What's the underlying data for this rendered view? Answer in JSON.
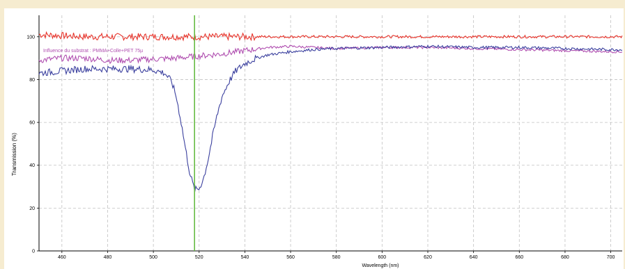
{
  "chart_data": {
    "type": "line",
    "title": "",
    "xlabel": "Wavelength (nm)",
    "ylabel": "Transmission (%)",
    "xlim": [
      450,
      705
    ],
    "ylim": [
      0,
      110
    ],
    "x_ticks": [
      460,
      480,
      500,
      520,
      540,
      560,
      580,
      600,
      620,
      640,
      660,
      680,
      700
    ],
    "y_ticks": [
      0,
      20,
      40,
      60,
      80,
      100
    ],
    "grid": true,
    "annotation": "Influence du substrat : PMMA+Colle+PET 75µ",
    "marker_line": {
      "x": 518,
      "color": "#66bb44"
    },
    "colors": {
      "red": "#e8332a",
      "magenta": "#b04fb0",
      "blue": "#3a3f9e",
      "grid": "#c0c0c0",
      "frame": "#f6ecd0"
    },
    "series": [
      {
        "color": "#e8332a",
        "x": [
          450,
          460,
          470,
          480,
          500,
          520,
          540,
          560,
          580,
          600,
          620,
          640,
          660,
          680,
          700,
          705
        ],
        "y": [
          101,
          100.5,
          100,
          100,
          100,
          100,
          100,
          100,
          100,
          100,
          100,
          100,
          100,
          100,
          100,
          100
        ]
      },
      {
        "color": "#b04fb0",
        "x": [
          450,
          460,
          470,
          480,
          490,
          500,
          510,
          520,
          530,
          540,
          550,
          560,
          570,
          580,
          600,
          620,
          640,
          660,
          680,
          700,
          705
        ],
        "y": [
          89,
          90,
          90,
          89,
          89,
          89.5,
          90,
          91,
          92,
          93.5,
          95,
          95.5,
          95,
          94.5,
          95,
          95,
          94.5,
          94,
          93.5,
          93,
          93
        ]
      },
      {
        "color": "#3a3f9e",
        "x": [
          450,
          460,
          470,
          480,
          490,
          500,
          505,
          508,
          510,
          512,
          514,
          516,
          518,
          520,
          522,
          524,
          526,
          528,
          530,
          533,
          536,
          540,
          545,
          550,
          560,
          570,
          580,
          600,
          620,
          640,
          660,
          680,
          700,
          705
        ],
        "y": [
          83,
          84,
          85,
          85,
          85,
          84.5,
          83,
          79,
          72,
          61,
          48,
          36,
          28.5,
          29,
          34,
          43,
          54,
          64,
          72,
          79,
          84,
          87.5,
          90,
          91.5,
          93,
          94,
          94.5,
          95,
          95.5,
          95,
          95,
          94.5,
          94,
          94
        ]
      }
    ]
  }
}
